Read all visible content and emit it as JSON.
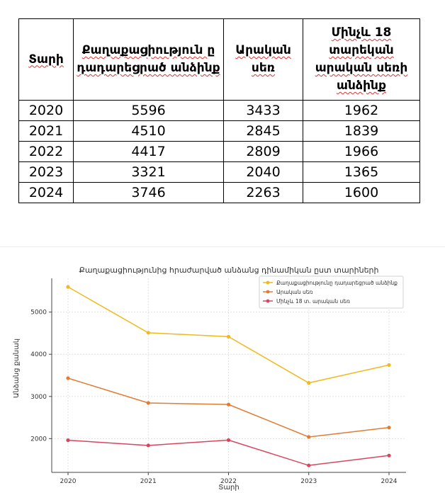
{
  "table": {
    "headers": [
      "Տարի",
      "Քաղաքացիություն ը դադարեցրած անձինք",
      "Արական սեռ",
      "Մինչև 18 տարեկան արական սեռի անձինք"
    ],
    "rows": [
      [
        "2020",
        "5596",
        "3433",
        "1962"
      ],
      [
        "2021",
        "4510",
        "2845",
        "1839"
      ],
      [
        "2022",
        "4417",
        "2809",
        "1966"
      ],
      [
        "2023",
        "3321",
        "2040",
        "1365"
      ],
      [
        "2024",
        "3746",
        "2263",
        "1600"
      ]
    ]
  },
  "chart_data": {
    "type": "line",
    "title": "Քաղաքացիությունից հրաժարված անձանց դինամիկան ըստ տարիների",
    "xlabel": "Տարի",
    "ylabel": "Անձանց քանակ",
    "categories": [
      "2020",
      "2021",
      "2022",
      "2023",
      "2024"
    ],
    "yticks": [
      2000,
      3000,
      4000,
      5000
    ],
    "ylim": [
      1200,
      5800
    ],
    "grid": true,
    "legend_position": "top-right",
    "series": [
      {
        "name": "Քաղաքացիությունը դադարեցրած անձինք",
        "values": [
          5596,
          4510,
          4417,
          3321,
          3746
        ],
        "color": "#f0b91e"
      },
      {
        "name": "Արական սեռ",
        "values": [
          3433,
          2845,
          2809,
          2040,
          2263
        ],
        "color": "#e27b34"
      },
      {
        "name": "Մինչև 18 տ. արական սեռ",
        "values": [
          1962,
          1839,
          1966,
          1365,
          1600
        ],
        "color": "#d9455f"
      }
    ]
  }
}
